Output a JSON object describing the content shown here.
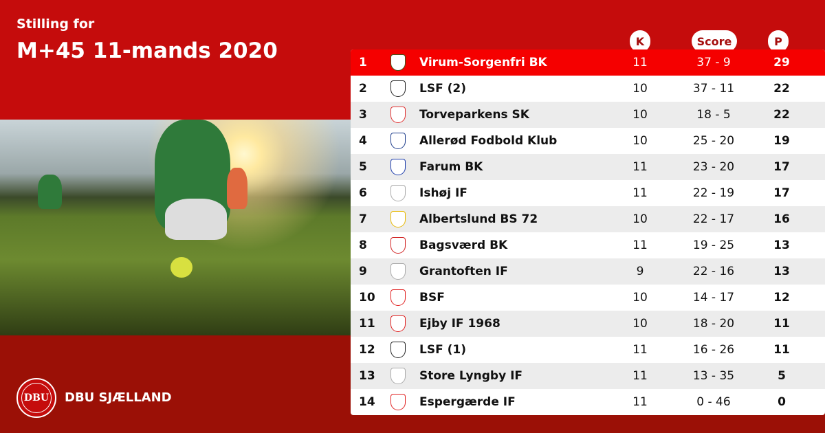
{
  "header": {
    "subtitle": "Stilling for",
    "title": "M+45 11-mands 2020"
  },
  "columns": {
    "k": "K",
    "score": "Score",
    "p": "P"
  },
  "footer": {
    "brand": "DBU SJÆLLAND",
    "logo_text": "DBU"
  },
  "colors": {
    "top_bg": "#c50c0c",
    "bottom_bg": "#9b1006",
    "leader_row": "#f50000"
  },
  "rows": [
    {
      "rank": "1",
      "team": "Virum-Sorgenfri BK",
      "k": "11",
      "score": "37 - 9",
      "p": "29",
      "crest": "#3a5a1a"
    },
    {
      "rank": "2",
      "team": "LSF (2)",
      "k": "10",
      "score": "37 - 11",
      "p": "22",
      "crest": "#222"
    },
    {
      "rank": "3",
      "team": "Torveparkens SK",
      "k": "10",
      "score": "18 - 5",
      "p": "22",
      "crest": "#e03030"
    },
    {
      "rank": "4",
      "team": "Allerød Fodbold Klub",
      "k": "10",
      "score": "25 - 20",
      "p": "19",
      "crest": "#1a3a8a"
    },
    {
      "rank": "5",
      "team": "Farum BK",
      "k": "11",
      "score": "23 - 20",
      "p": "17",
      "crest": "#1a3aaa"
    },
    {
      "rank": "6",
      "team": "Ishøj IF",
      "k": "11",
      "score": "22 - 19",
      "p": "17",
      "crest": "#aaa"
    },
    {
      "rank": "7",
      "team": "Albertslund BS 72",
      "k": "10",
      "score": "22 - 17",
      "p": "16",
      "crest": "#e8b800"
    },
    {
      "rank": "8",
      "team": "Bagsværd BK",
      "k": "11",
      "score": "19 - 25",
      "p": "13",
      "crest": "#d02020"
    },
    {
      "rank": "9",
      "team": "Grantoften IF",
      "k": "9",
      "score": "22 - 16",
      "p": "13",
      "crest": "#aaa"
    },
    {
      "rank": "10",
      "team": "BSF",
      "k": "10",
      "score": "14 - 17",
      "p": "12",
      "crest": "#e02020"
    },
    {
      "rank": "11",
      "team": "Ejby IF 1968",
      "k": "10",
      "score": "18 - 20",
      "p": "11",
      "crest": "#e02020"
    },
    {
      "rank": "12",
      "team": "LSF (1)",
      "k": "11",
      "score": "16 - 26",
      "p": "11",
      "crest": "#222"
    },
    {
      "rank": "13",
      "team": "Store Lyngby IF",
      "k": "11",
      "score": "13 - 35",
      "p": "5",
      "crest": "#aaa"
    },
    {
      "rank": "14",
      "team": "Espergærde IF",
      "k": "11",
      "score": "0 - 46",
      "p": "0",
      "crest": "#e02020"
    }
  ]
}
